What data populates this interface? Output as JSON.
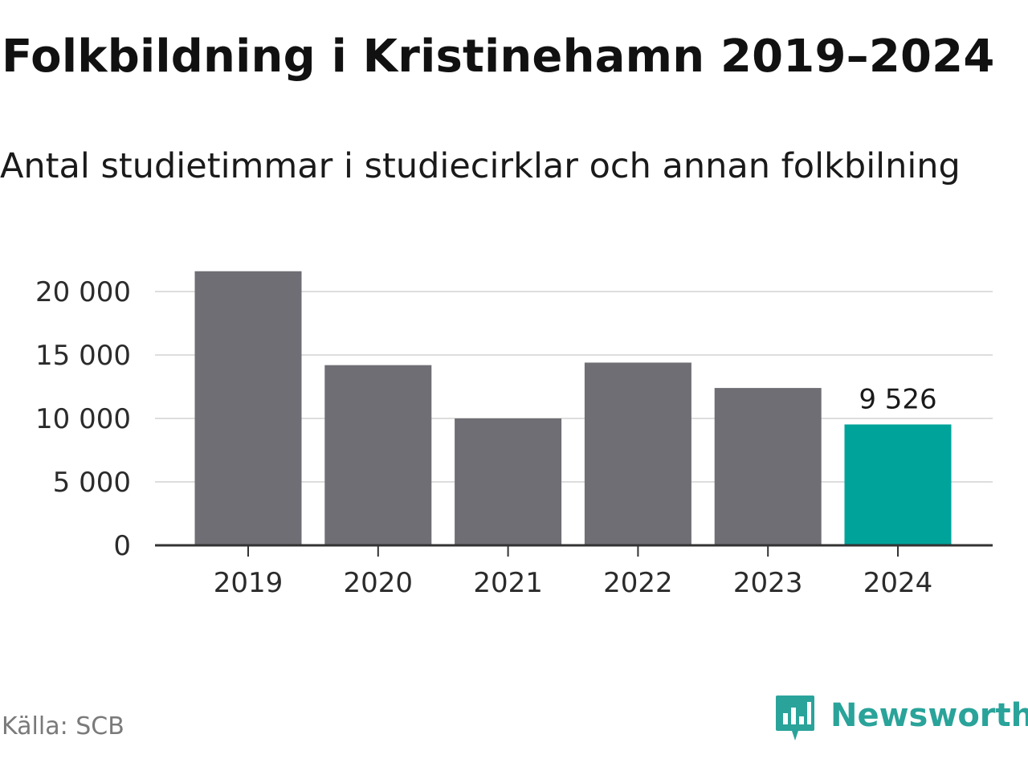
{
  "title": "Folkbildning i Kristinehamn 2019–2024",
  "subtitle": "Antal studietimmar i studiecirklar och annan folkbilning",
  "source": "Källa: SCB",
  "logo": {
    "text": "Newsworthy",
    "icon": "newsworthy-logo-icon",
    "color": "#2aa39a"
  },
  "colors": {
    "bar": "#6f6e74",
    "highlight": "#00a39a",
    "grid": "#dddddd",
    "axis": "#333333"
  },
  "chart_data": {
    "type": "bar",
    "categories": [
      "2019",
      "2020",
      "2021",
      "2022",
      "2023",
      "2024"
    ],
    "values": [
      21600,
      14200,
      10000,
      14400,
      12400,
      9526
    ],
    "highlight_index": 5,
    "data_labels": [
      {
        "index": 5,
        "text": "9 526"
      }
    ],
    "yticks": [
      {
        "value": 0,
        "label": "0"
      },
      {
        "value": 5000,
        "label": "5 000"
      },
      {
        "value": 10000,
        "label": "10 000"
      },
      {
        "value": 15000,
        "label": "15 000"
      },
      {
        "value": 20000,
        "label": "20 000"
      }
    ],
    "ylim": [
      0,
      22000
    ],
    "grid": true,
    "xlabel": "",
    "ylabel": ""
  }
}
